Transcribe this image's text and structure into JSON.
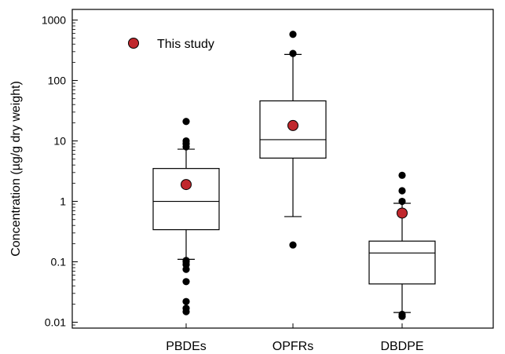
{
  "chart_data": {
    "type": "box",
    "title": "",
    "xlabel": "",
    "ylabel": "Concentration (µg/g dry weight)",
    "yscale": "log",
    "ylim": [
      0.008,
      1500
    ],
    "yticks": [
      0.01,
      0.1,
      1,
      10,
      100,
      1000
    ],
    "ytick_labels": [
      "0.01",
      "0.1",
      "1",
      "10",
      "100",
      "1000"
    ],
    "categories": [
      "PBDEs",
      "OPFRs",
      "DBDPE"
    ],
    "boxes": [
      {
        "category": "PBDEs",
        "whisker_low": 0.11,
        "q1": 0.34,
        "median": 1.0,
        "q3": 3.5,
        "whisker_high": 7.3,
        "outliers": [
          0.015,
          0.017,
          0.022,
          0.047,
          0.075,
          0.09,
          0.1,
          0.105,
          8.0,
          9.0,
          10.0,
          21.0
        ]
      },
      {
        "category": "OPFRs",
        "whisker_low": 0.56,
        "q1": 5.2,
        "median": 10.5,
        "q3": 46.0,
        "whisker_high": 270,
        "outliers": [
          0.19,
          280,
          580
        ]
      },
      {
        "category": "DBDPE",
        "whisker_low": 0.0145,
        "q1": 0.043,
        "median": 0.14,
        "q3": 0.22,
        "whisker_high": 0.93,
        "outliers": [
          0.0125,
          0.0135,
          1.0,
          1.5,
          2.7
        ]
      }
    ],
    "this_study": [
      {
        "category": "PBDEs",
        "value": 1.9
      },
      {
        "category": "OPFRs",
        "value": 18
      },
      {
        "category": "DBDPE",
        "value": 0.64
      }
    ],
    "legend": {
      "label": "This study",
      "position": "top-left"
    },
    "colors": {
      "this_study": "#c0282d",
      "outlier": "#000000",
      "box_fill": "#ffffff",
      "axis": "#000000"
    },
    "grid": false
  }
}
